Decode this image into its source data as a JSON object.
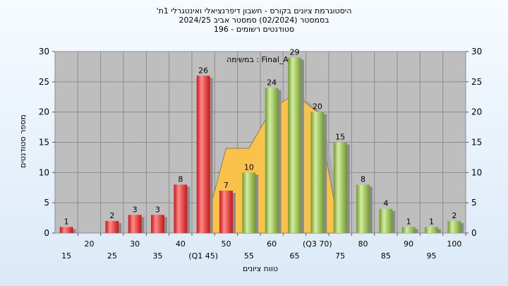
{
  "titles": {
    "line1": "'היסטוגרמת ציונים בקורס - חשבון דיפרנציאלי ואינטגרלי 1ת",
    "line2": "בסמסטר  (02/2024)  סמסטר אביב 2024/25",
    "line3": "סטודנטים רשומים - 196"
  },
  "chart_data": {
    "type": "bar",
    "title": "'היסטוגרמת ציונים בקורס - חשבון דיפרנציאלי ואינטגרלי 1ת",
    "xlabel": "טווח ציונים",
    "ylabel": "מספר סטודנטים",
    "ylim": [
      0,
      30
    ],
    "yticks": [
      0,
      5,
      10,
      15,
      20,
      25,
      30
    ],
    "legend_text": "במשימה : Final_A",
    "grid": true,
    "categories": [
      "15",
      "20",
      "25",
      "30",
      "35",
      "40",
      "(Q1 45)",
      "50",
      "55",
      "60",
      "65",
      "(Q3 70)",
      "75",
      "80",
      "85",
      "90",
      "95",
      "100"
    ],
    "values": [
      1,
      0,
      2,
      3,
      3,
      8,
      26,
      7,
      10,
      24,
      29,
      20,
      15,
      8,
      4,
      1,
      1,
      2
    ],
    "bar_colors": [
      "red",
      "none",
      "red",
      "red",
      "red",
      "red",
      "red",
      "red",
      "green",
      "green",
      "green",
      "green",
      "green",
      "green",
      "green",
      "green",
      "green",
      "green"
    ],
    "band": {
      "color": "#f9c24a",
      "upper": [
        0,
        0,
        0,
        0,
        0,
        0,
        0,
        14,
        14,
        20.5,
        23,
        20,
        0,
        0,
        0,
        0,
        0,
        0
      ]
    },
    "colors": {
      "red_light": "#ff8a8a",
      "red_dark": "#c81414",
      "green_light": "#d4eda0",
      "green_dark": "#6f9a2b",
      "plot_bg": "#bebebe",
      "band": "#f9c24a",
      "band_shadow": "#a8a8a8"
    }
  }
}
